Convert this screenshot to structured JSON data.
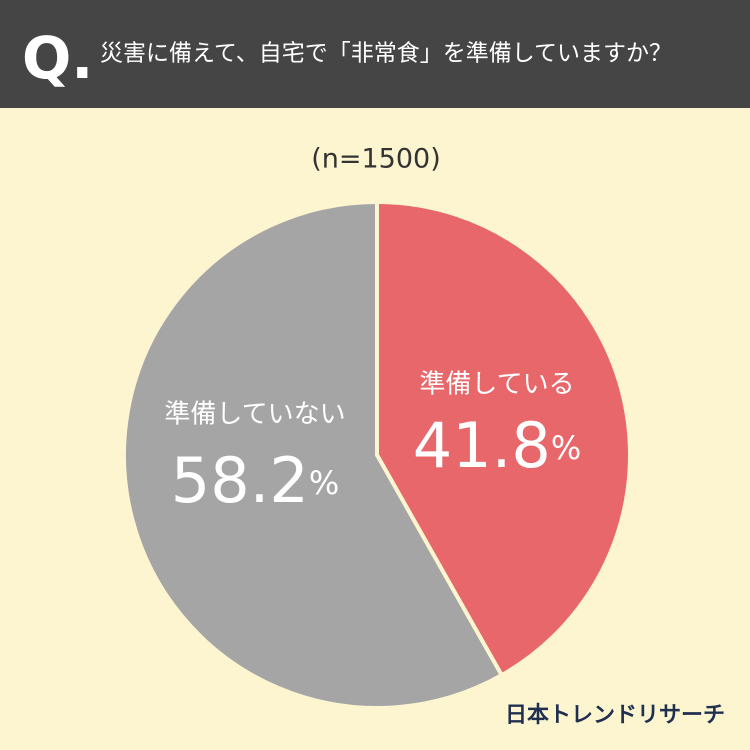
{
  "question_label": "Q.",
  "chart_data": {
    "type": "pie",
    "title": "災害に備えて、自宅で「非常食」を準備していますか？",
    "subtitle": "(n=1500)",
    "categories": [
      "準備している",
      "準備していない"
    ],
    "values": [
      41.8,
      58.2
    ],
    "value_labels": [
      "41.8%",
      "58.2%"
    ],
    "colors": [
      "#e8676a",
      "#a5a5a5"
    ]
  },
  "brand": "日本トレンドリサーチ"
}
